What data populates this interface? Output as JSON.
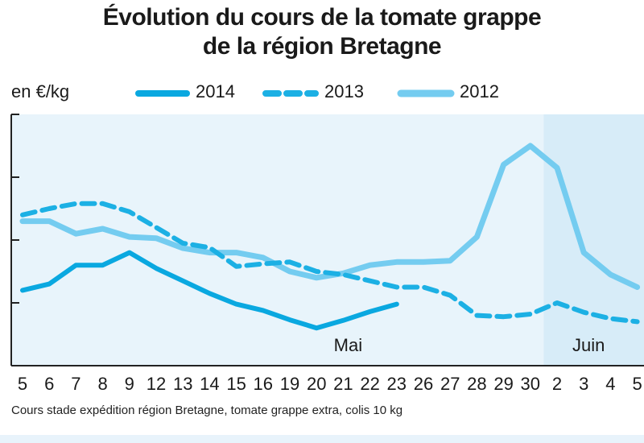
{
  "title_line1": "Évolution du cours de la tomate grappe",
  "title_line2": "de la région Bretagne",
  "unit_label": "en €/kg",
  "footer_note": "Cours stade expédition région Bretagne, tomate grappe extra, colis 10 kg",
  "colors": {
    "s2014": "#0aa8e0",
    "s2013": "#1cb0e4",
    "s2012": "#74ccf0",
    "plot_bg": "#e8f4fb",
    "june_bg": "#d7ecf8",
    "axis": "#222222"
  },
  "chart_data": {
    "type": "line",
    "title": "Évolution du cours de la tomate grappe de la région Bretagne",
    "ylabel": "en €/kg",
    "y_ticks_labeled": false,
    "grid": false,
    "legend_position": "top",
    "categories": [
      "5",
      "6",
      "7",
      "8",
      "9",
      "12",
      "13",
      "14",
      "15",
      "16",
      "19",
      "20",
      "21",
      "22",
      "23",
      "26",
      "27",
      "28",
      "29",
      "30",
      "2",
      "3",
      "4",
      "5"
    ],
    "month_labels": [
      {
        "text": "Mai",
        "at_category_index": 12
      },
      {
        "text": "Juin",
        "at_category_index": 21
      }
    ],
    "june_start_index": 20,
    "series": [
      {
        "name": "2014",
        "style": "solid-thick",
        "values": [
          1.2,
          1.3,
          1.6,
          1.6,
          1.8,
          1.55,
          1.35,
          1.15,
          0.98,
          0.88,
          0.73,
          0.6,
          0.72,
          0.86,
          0.98,
          null,
          null,
          null,
          null,
          null,
          null,
          null,
          null,
          null
        ]
      },
      {
        "name": "2013",
        "style": "dashed",
        "values": [
          2.4,
          2.5,
          2.58,
          2.58,
          2.45,
          2.2,
          1.95,
          1.88,
          1.58,
          1.62,
          1.65,
          1.5,
          1.45,
          1.35,
          1.25,
          1.25,
          1.12,
          0.8,
          0.78,
          0.82,
          1.0,
          0.85,
          0.75,
          0.7
        ]
      },
      {
        "name": "2012",
        "style": "solid-light",
        "values": [
          2.3,
          2.3,
          2.1,
          2.18,
          2.05,
          2.03,
          1.87,
          1.8,
          1.8,
          1.72,
          1.5,
          1.4,
          1.47,
          1.6,
          1.65,
          1.65,
          1.67,
          2.05,
          3.2,
          3.5,
          3.15,
          1.8,
          1.45,
          1.25
        ]
      }
    ],
    "ylim": [
      0,
      4
    ]
  }
}
